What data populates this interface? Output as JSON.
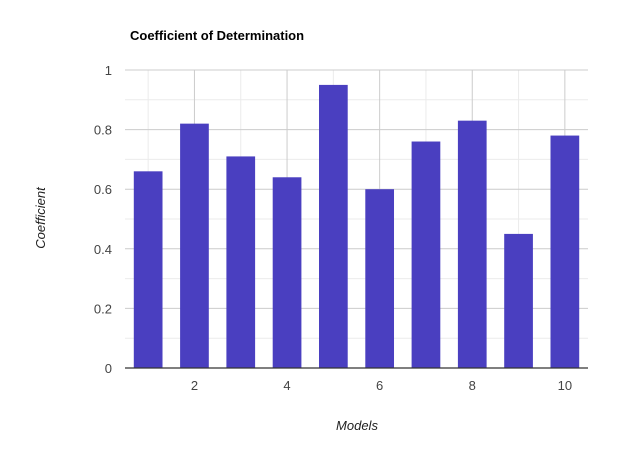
{
  "chart_data": {
    "type": "bar",
    "title": "Coefficient of Determination",
    "xlabel": "Models",
    "ylabel": "Coefficient",
    "x": [
      1,
      2,
      3,
      4,
      5,
      6,
      7,
      8,
      9,
      10
    ],
    "series": [
      {
        "values": [
          0.66,
          0.82,
          0.71,
          0.64,
          0.95,
          0.6,
          0.76,
          0.83,
          0.45,
          0.78
        ]
      }
    ],
    "x_ticks": [
      "2",
      "4",
      "6",
      "8",
      "10"
    ],
    "y_ticks": [
      "0",
      "0.2",
      "0.4",
      "0.6",
      "0.8",
      "1"
    ],
    "xlim": [
      0.5,
      10.5
    ],
    "ylim": [
      0,
      1
    ],
    "grid": true,
    "colors": {
      "bar": "#4a3fc0",
      "grid_major": "#cccccc",
      "grid_minor": "#ebebeb",
      "baseline": "#333333"
    }
  }
}
